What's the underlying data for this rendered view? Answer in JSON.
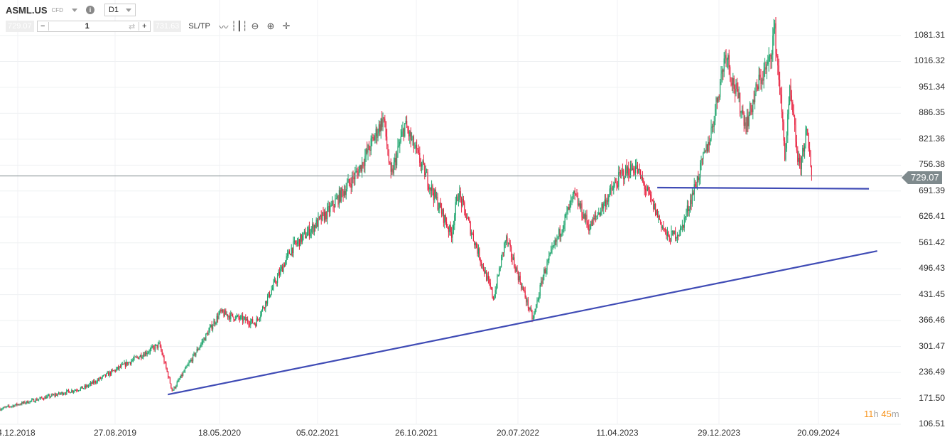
{
  "header": {
    "symbol": "ASML.US",
    "instrument_type": "CFD",
    "timeframe": "D1"
  },
  "trade_bar": {
    "sell_price": "729.07",
    "quantity": "1",
    "buy_price": "731.63",
    "sltp_label": "SL/TP",
    "icons": [
      "line-chart-icon",
      "candlestick-icon",
      "zoom-out-icon",
      "zoom-in-icon",
      "move-crosshair-icon"
    ]
  },
  "timer": {
    "hours": "11",
    "h": "h",
    "minutes": "45",
    "m": "m"
  },
  "colors": {
    "up": "#1aa36a",
    "down": "#e8213f",
    "trendline": "#3f4bb5",
    "price_line": "#7f8a8d",
    "timer": "#f7941d"
  },
  "chart_data": {
    "type": "candlestick",
    "y_ticks": [
      "1081.31",
      "1016.32",
      "951.34",
      "886.35",
      "821.36",
      "756.38",
      "691.39",
      "626.41",
      "561.42",
      "496.43",
      "431.45",
      "366.46",
      "301.47",
      "236.49",
      "171.50",
      "106.51"
    ],
    "x_ticks": [
      "4.12.2018",
      "27.08.2019",
      "18.05.2020",
      "05.02.2021",
      "26.10.2021",
      "20.07.2022",
      "11.04.2023",
      "29.12.2023",
      "20.09.2024"
    ],
    "ylim": [
      106.51,
      1081.31
    ],
    "current_price": "729.07",
    "approx_close_path": [
      [
        "2018-10-18",
        145
      ],
      [
        "2019-05-31",
        199
      ],
      [
        "2019-12-14",
        306
      ],
      [
        "2020-01-17",
        190
      ],
      [
        "2020-05-22",
        386
      ],
      [
        "2020-08-24",
        360
      ],
      [
        "2020-11-27",
        547
      ],
      [
        "2021-03-01",
        636
      ],
      [
        "2021-05-24",
        743
      ],
      [
        "2021-07-29",
        876
      ],
      [
        "2021-08-17",
        725
      ],
      [
        "2021-09-23",
        858
      ],
      [
        "2021-11-28",
        707
      ],
      [
        "2022-01-24",
        582
      ],
      [
        "2022-02-11",
        689
      ],
      [
        "2022-05-16",
        422
      ],
      [
        "2022-06-17",
        573
      ],
      [
        "2022-08-28",
        368
      ],
      [
        "2022-09-25",
        484
      ],
      [
        "2022-12-15",
        680
      ],
      [
        "2023-01-25",
        600
      ],
      [
        "2023-04-20",
        734
      ],
      [
        "2023-05-27",
        752
      ],
      [
        "2023-08-20",
        573
      ],
      [
        "2023-09-23",
        591
      ],
      [
        "2023-11-13",
        743
      ],
      [
        "2023-12-11",
        832
      ],
      [
        "2024-01-21",
        1046
      ],
      [
        "2024-02-05",
        974
      ],
      [
        "2024-03-14",
        858
      ],
      [
        "2024-04-17",
        965
      ],
      [
        "2024-05-13",
        1010
      ],
      [
        "2024-05-28",
        1099
      ],
      [
        "2024-06-12",
        939
      ],
      [
        "2024-06-25",
        778
      ],
      [
        "2024-07-08",
        939
      ],
      [
        "2024-08-02",
        743
      ],
      [
        "2024-08-20",
        840
      ],
      [
        "2024-09-05",
        729.07
      ]
    ],
    "trendlines": [
      {
        "from": [
          "2020-01-05",
          181
        ],
        "to": [
          "2025-02-24",
          541
        ]
      },
      {
        "from": [
          "2023-07-23",
          700
        ],
        "to": [
          "2025-02-02",
          697
        ]
      }
    ]
  }
}
